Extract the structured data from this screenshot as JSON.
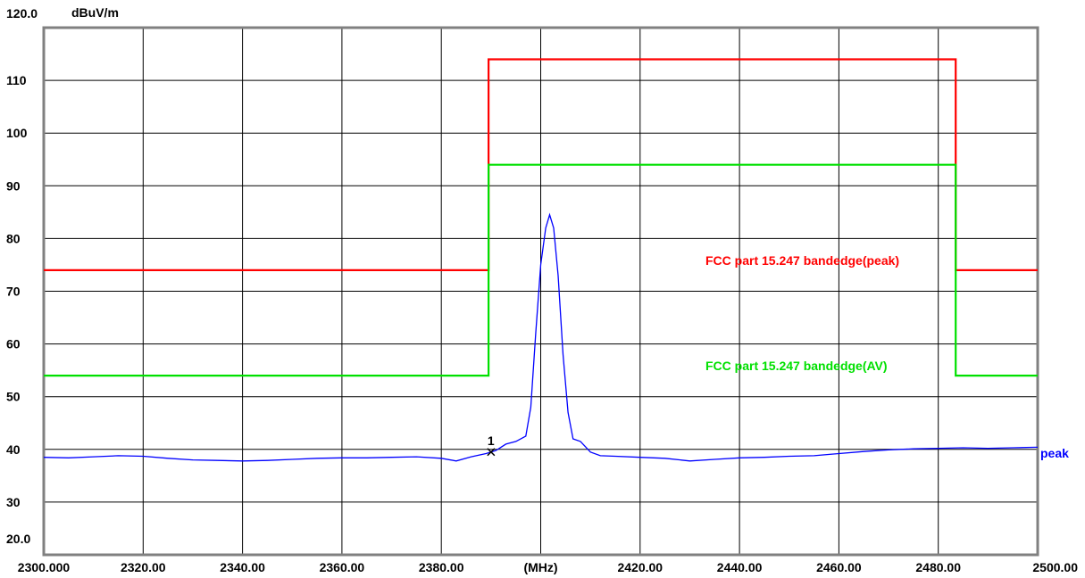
{
  "chart_data": {
    "type": "line",
    "title": "",
    "xlabel": "(MHz)",
    "ylabel": "dBuV/m",
    "xlim": [
      2300,
      2500
    ],
    "ylim": [
      20,
      120
    ],
    "grid": true,
    "x_tick_labels": [
      "2300.000",
      "2320.00",
      "2340.00",
      "2360.00",
      "2380.00",
      "(MHz)",
      "2420.00",
      "2440.00",
      "2460.00",
      "2480.00",
      "2500.00"
    ],
    "x_tick_values": [
      2300,
      2320,
      2340,
      2360,
      2380,
      2400,
      2420,
      2440,
      2460,
      2480,
      2500
    ],
    "y_tick_labels": [
      "120.0",
      "110",
      "100",
      "90",
      "80",
      "70",
      "60",
      "50",
      "40",
      "30",
      "20.0"
    ],
    "y_tick_values": [
      120,
      110,
      100,
      90,
      80,
      70,
      60,
      50,
      40,
      30,
      20
    ],
    "series": [
      {
        "name": "FCC part 15.247 bandedge(peak)",
        "color": "#ff0000",
        "points": [
          [
            2300,
            74
          ],
          [
            2389.5,
            74
          ],
          [
            2389.5,
            114
          ],
          [
            2483.5,
            114
          ],
          [
            2483.5,
            74
          ],
          [
            2500,
            74
          ]
        ]
      },
      {
        "name": "FCC part 15.247 bandedge(AV)",
        "color": "#00e000",
        "points": [
          [
            2300,
            54
          ],
          [
            2389.5,
            54
          ],
          [
            2389.5,
            94
          ],
          [
            2483.5,
            94
          ],
          [
            2483.5,
            54
          ],
          [
            2500,
            54
          ]
        ]
      },
      {
        "name": "peak",
        "color": "#0000ff",
        "points": [
          [
            2300,
            38.5
          ],
          [
            2305,
            38.4
          ],
          [
            2310,
            38.6
          ],
          [
            2315,
            38.8
          ],
          [
            2320,
            38.7
          ],
          [
            2325,
            38.3
          ],
          [
            2330,
            38.0
          ],
          [
            2335,
            37.9
          ],
          [
            2340,
            37.8
          ],
          [
            2345,
            37.9
          ],
          [
            2350,
            38.1
          ],
          [
            2355,
            38.3
          ],
          [
            2360,
            38.4
          ],
          [
            2365,
            38.4
          ],
          [
            2370,
            38.5
          ],
          [
            2375,
            38.6
          ],
          [
            2380,
            38.3
          ],
          [
            2383,
            37.8
          ],
          [
            2386,
            38.6
          ],
          [
            2389,
            39.2
          ],
          [
            2391,
            39.8
          ],
          [
            2393,
            41.0
          ],
          [
            2395,
            41.5
          ],
          [
            2397,
            42.5
          ],
          [
            2398,
            48
          ],
          [
            2399,
            62
          ],
          [
            2400,
            75
          ],
          [
            2401,
            82
          ],
          [
            2401.8,
            84.5
          ],
          [
            2402.6,
            82
          ],
          [
            2403.5,
            73
          ],
          [
            2404.5,
            58
          ],
          [
            2405.5,
            47
          ],
          [
            2406.5,
            42
          ],
          [
            2408,
            41.5
          ],
          [
            2410,
            39.5
          ],
          [
            2412,
            38.8
          ],
          [
            2415,
            38.7
          ],
          [
            2420,
            38.5
          ],
          [
            2425,
            38.3
          ],
          [
            2430,
            37.8
          ],
          [
            2435,
            38.1
          ],
          [
            2440,
            38.4
          ],
          [
            2445,
            38.5
          ],
          [
            2450,
            38.7
          ],
          [
            2455,
            38.8
          ],
          [
            2460,
            39.2
          ],
          [
            2465,
            39.6
          ],
          [
            2470,
            39.9
          ],
          [
            2475,
            40.1
          ],
          [
            2480,
            40.2
          ],
          [
            2485,
            40.3
          ],
          [
            2490,
            40.2
          ],
          [
            2495,
            40.3
          ],
          [
            2500,
            40.4
          ]
        ]
      }
    ],
    "legend_labels": [
      {
        "text": "FCC part 15.247 bandedge(peak)",
        "color": "#ff0000",
        "series": 0
      },
      {
        "text": "FCC part 15.247 bandedge(AV)",
        "color": "#00e000",
        "series": 1
      },
      {
        "text": "peak",
        "color": "#0000ff",
        "series": 2
      }
    ],
    "markers": [
      {
        "label": "1",
        "x": 2390,
        "y": 39.5,
        "symbol": "x"
      }
    ]
  }
}
